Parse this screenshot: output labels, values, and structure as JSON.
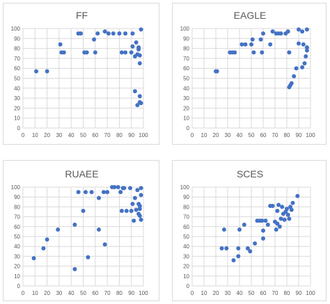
{
  "dot_color": "#4472c4",
  "chart_data": [
    {
      "type": "scatter",
      "title": "FF",
      "xlim": [
        0,
        100
      ],
      "ylim": [
        0,
        100
      ],
      "xticks": [
        0,
        10,
        20,
        30,
        40,
        50,
        60,
        70,
        80,
        90,
        100
      ],
      "yticks": [
        0,
        10,
        20,
        30,
        40,
        50,
        60,
        70,
        80,
        90,
        100
      ],
      "grid": true,
      "points": [
        [
          11,
          57
        ],
        [
          20,
          57
        ],
        [
          31,
          84
        ],
        [
          32,
          76
        ],
        [
          34,
          76
        ],
        [
          46,
          95
        ],
        [
          48,
          95
        ],
        [
          51,
          76
        ],
        [
          53,
          76
        ],
        [
          59,
          89
        ],
        [
          60,
          76
        ],
        [
          62,
          95
        ],
        [
          68,
          97
        ],
        [
          71,
          95
        ],
        [
          75,
          95
        ],
        [
          80,
          95
        ],
        [
          82,
          76
        ],
        [
          85,
          76
        ],
        [
          85,
          95
        ],
        [
          90,
          76
        ],
        [
          91,
          82
        ],
        [
          91,
          95
        ],
        [
          93,
          37
        ],
        [
          93,
          72
        ],
        [
          94,
          86
        ],
        [
          95,
          23
        ],
        [
          95,
          74
        ],
        [
          96,
          79
        ],
        [
          96,
          81
        ],
        [
          97,
          26
        ],
        [
          97,
          32
        ],
        [
          97,
          65
        ],
        [
          97,
          73
        ],
        [
          98,
          25
        ],
        [
          98,
          99
        ]
      ]
    },
    {
      "type": "scatter",
      "title": "EAGLE",
      "xlim": [
        0,
        100
      ],
      "ylim": [
        0,
        100
      ],
      "xticks": [
        0,
        10,
        20,
        30,
        40,
        50,
        60,
        70,
        80,
        90,
        100
      ],
      "yticks": [
        0,
        10,
        20,
        30,
        40,
        50,
        60,
        70,
        80,
        90,
        100
      ],
      "grid": true,
      "points": [
        [
          20,
          57
        ],
        [
          21,
          57
        ],
        [
          32,
          76
        ],
        [
          34,
          76
        ],
        [
          36,
          76
        ],
        [
          42,
          84
        ],
        [
          45,
          84
        ],
        [
          50,
          84
        ],
        [
          51,
          89
        ],
        [
          52,
          76
        ],
        [
          58,
          89
        ],
        [
          59,
          76
        ],
        [
          60,
          95
        ],
        [
          66,
          84
        ],
        [
          68,
          97
        ],
        [
          71,
          95
        ],
        [
          73,
          95
        ],
        [
          75,
          95
        ],
        [
          79,
          95
        ],
        [
          81,
          97
        ],
        [
          82,
          41
        ],
        [
          82,
          76
        ],
        [
          83,
          43
        ],
        [
          84,
          45
        ],
        [
          86,
          52
        ],
        [
          88,
          60
        ],
        [
          90,
          85
        ],
        [
          90,
          99
        ],
        [
          93,
          61
        ],
        [
          93,
          97
        ],
        [
          94,
          84
        ],
        [
          95,
          65
        ],
        [
          96,
          72
        ],
        [
          97,
          78
        ],
        [
          97,
          81
        ],
        [
          97,
          99
        ]
      ]
    },
    {
      "type": "scatter",
      "title": "RUAEE",
      "xlim": [
        0,
        100
      ],
      "ylim": [
        0,
        100
      ],
      "xticks": [
        0,
        10,
        20,
        30,
        40,
        50,
        60,
        70,
        80,
        90,
        100
      ],
      "yticks": [
        0,
        10,
        20,
        30,
        40,
        50,
        60,
        70,
        80,
        90,
        100
      ],
      "grid": true,
      "points": [
        [
          9,
          28
        ],
        [
          17,
          38
        ],
        [
          20,
          47
        ],
        [
          29,
          57
        ],
        [
          43,
          62
        ],
        [
          43,
          17
        ],
        [
          46,
          95
        ],
        [
          50,
          76
        ],
        [
          52,
          95
        ],
        [
          54,
          29
        ],
        [
          57,
          95
        ],
        [
          63,
          57
        ],
        [
          63,
          89
        ],
        [
          67,
          95
        ],
        [
          68,
          42
        ],
        [
          70,
          95
        ],
        [
          74,
          100
        ],
        [
          76,
          100
        ],
        [
          79,
          100
        ],
        [
          81,
          95
        ],
        [
          82,
          76
        ],
        [
          83,
          99
        ],
        [
          84,
          99
        ],
        [
          86,
          76
        ],
        [
          89,
          99
        ],
        [
          90,
          76
        ],
        [
          91,
          83
        ],
        [
          92,
          66
        ],
        [
          93,
          89
        ],
        [
          94,
          77
        ],
        [
          95,
          97
        ],
        [
          96,
          83
        ],
        [
          96,
          73
        ],
        [
          97,
          81
        ],
        [
          97,
          71
        ],
        [
          97,
          78
        ],
        [
          98,
          67
        ],
        [
          98,
          92
        ],
        [
          98,
          99
        ]
      ]
    },
    {
      "type": "scatter",
      "title": "SCES",
      "xlim": [
        0,
        100
      ],
      "ylim": [
        0,
        100
      ],
      "xticks": [
        0,
        10,
        20,
        30,
        40,
        50,
        60,
        70,
        80,
        90,
        100
      ],
      "yticks": [
        0,
        10,
        20,
        30,
        40,
        50,
        60,
        70,
        80,
        90,
        100
      ],
      "grid": true,
      "points": [
        [
          25,
          38
        ],
        [
          27,
          57
        ],
        [
          29,
          38
        ],
        [
          35,
          26
        ],
        [
          39,
          30
        ],
        [
          39,
          38
        ],
        [
          40,
          57
        ],
        [
          44,
          62
        ],
        [
          47,
          38
        ],
        [
          49,
          35
        ],
        [
          53,
          43
        ],
        [
          55,
          66
        ],
        [
          57,
          66
        ],
        [
          59,
          66
        ],
        [
          60,
          56
        ],
        [
          60,
          48
        ],
        [
          62,
          66
        ],
        [
          64,
          62
        ],
        [
          66,
          81
        ],
        [
          68,
          81
        ],
        [
          70,
          65
        ],
        [
          71,
          57
        ],
        [
          72,
          63
        ],
        [
          72,
          76
        ],
        [
          73,
          82
        ],
        [
          74,
          60
        ],
        [
          75,
          68
        ],
        [
          76,
          80
        ],
        [
          77,
          73
        ],
        [
          78,
          67
        ],
        [
          79,
          75
        ],
        [
          80,
          78
        ],
        [
          81,
          72
        ],
        [
          82,
          68
        ],
        [
          83,
          80
        ],
        [
          84,
          77
        ],
        [
          85,
          84
        ],
        [
          89,
          91
        ]
      ]
    }
  ]
}
